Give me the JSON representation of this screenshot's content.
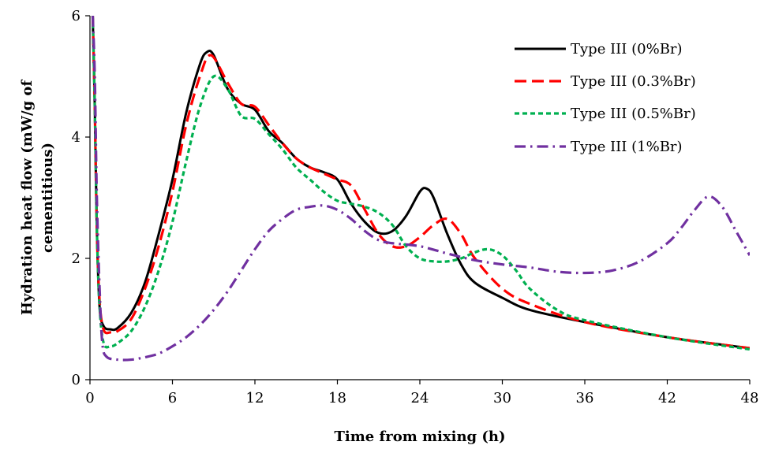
{
  "chart_data": {
    "type": "line",
    "title": "",
    "xlabel": "Time from mixing (h)",
    "ylabel_lines": [
      "Hydration heat flow (mW/g of",
      "cementitious)"
    ],
    "xlim": [
      0,
      48
    ],
    "ylim": [
      0,
      6
    ],
    "xticks": [
      0,
      6,
      12,
      18,
      24,
      30,
      36,
      42,
      48
    ],
    "yticks": [
      0,
      2,
      4,
      6
    ],
    "grid": false,
    "legend_position": "top-right",
    "series": [
      {
        "name": "Type III (0%Br)",
        "color": "#000000",
        "dash": "solid",
        "points": [
          [
            0.2,
            6.0
          ],
          [
            0.35,
            4.5
          ],
          [
            0.5,
            2.5
          ],
          [
            0.7,
            1.2
          ],
          [
            1.0,
            0.88
          ],
          [
            1.5,
            0.83
          ],
          [
            2,
            0.85
          ],
          [
            3,
            1.1
          ],
          [
            4,
            1.6
          ],
          [
            5,
            2.4
          ],
          [
            6,
            3.3
          ],
          [
            7,
            4.4
          ],
          [
            8,
            5.2
          ],
          [
            8.5,
            5.4
          ],
          [
            9,
            5.35
          ],
          [
            10,
            4.8
          ],
          [
            11,
            4.55
          ],
          [
            12,
            4.45
          ],
          [
            13,
            4.1
          ],
          [
            14,
            3.9
          ],
          [
            15,
            3.65
          ],
          [
            16,
            3.5
          ],
          [
            17,
            3.42
          ],
          [
            18,
            3.3
          ],
          [
            19,
            2.9
          ],
          [
            20,
            2.6
          ],
          [
            21,
            2.42
          ],
          [
            22,
            2.45
          ],
          [
            23,
            2.7
          ],
          [
            24,
            3.1
          ],
          [
            24.5,
            3.15
          ],
          [
            25,
            3.0
          ],
          [
            26,
            2.4
          ],
          [
            27,
            1.9
          ],
          [
            28,
            1.6
          ],
          [
            30,
            1.35
          ],
          [
            32,
            1.15
          ],
          [
            36,
            0.95
          ],
          [
            42,
            0.7
          ],
          [
            48,
            0.52
          ]
        ]
      },
      {
        "name": "Type III (0.3%Br)",
        "color": "#ff0000",
        "dash": "long-dash",
        "points": [
          [
            0.2,
            6.0
          ],
          [
            0.35,
            4.5
          ],
          [
            0.5,
            2.5
          ],
          [
            0.7,
            1.3
          ],
          [
            1.0,
            0.82
          ],
          [
            1.5,
            0.78
          ],
          [
            2,
            0.8
          ],
          [
            3,
            1.0
          ],
          [
            4,
            1.5
          ],
          [
            5,
            2.2
          ],
          [
            6,
            3.1
          ],
          [
            7,
            4.2
          ],
          [
            8,
            5.0
          ],
          [
            8.8,
            5.35
          ],
          [
            10,
            4.9
          ],
          [
            11,
            4.55
          ],
          [
            12,
            4.5
          ],
          [
            13,
            4.2
          ],
          [
            14,
            3.9
          ],
          [
            15,
            3.65
          ],
          [
            16,
            3.5
          ],
          [
            17,
            3.4
          ],
          [
            18,
            3.3
          ],
          [
            19,
            3.2
          ],
          [
            20,
            2.8
          ],
          [
            21,
            2.4
          ],
          [
            22,
            2.2
          ],
          [
            23,
            2.2
          ],
          [
            24,
            2.35
          ],
          [
            25,
            2.55
          ],
          [
            26,
            2.65
          ],
          [
            27,
            2.4
          ],
          [
            28,
            2.0
          ],
          [
            30,
            1.5
          ],
          [
            32,
            1.25
          ],
          [
            36,
            0.95
          ],
          [
            42,
            0.7
          ],
          [
            48,
            0.52
          ]
        ]
      },
      {
        "name": "Type III (0.5%Br)",
        "color": "#00b050",
        "dash": "short-dash",
        "points": [
          [
            0.2,
            6.0
          ],
          [
            0.35,
            4.5
          ],
          [
            0.5,
            2.5
          ],
          [
            0.7,
            1.2
          ],
          [
            1.0,
            0.6
          ],
          [
            1.5,
            0.55
          ],
          [
            2,
            0.6
          ],
          [
            3,
            0.8
          ],
          [
            4,
            1.2
          ],
          [
            5,
            1.8
          ],
          [
            6,
            2.6
          ],
          [
            7,
            3.6
          ],
          [
            8,
            4.5
          ],
          [
            9,
            5.0
          ],
          [
            10,
            4.8
          ],
          [
            11,
            4.35
          ],
          [
            12,
            4.3
          ],
          [
            13,
            4.05
          ],
          [
            14,
            3.8
          ],
          [
            15,
            3.5
          ],
          [
            16,
            3.3
          ],
          [
            17,
            3.1
          ],
          [
            18,
            2.95
          ],
          [
            19,
            2.9
          ],
          [
            20,
            2.85
          ],
          [
            21,
            2.75
          ],
          [
            22,
            2.55
          ],
          [
            23,
            2.2
          ],
          [
            24,
            2.0
          ],
          [
            25,
            1.95
          ],
          [
            26,
            1.95
          ],
          [
            27,
            2.0
          ],
          [
            28,
            2.1
          ],
          [
            29,
            2.15
          ],
          [
            30,
            2.05
          ],
          [
            31,
            1.8
          ],
          [
            32,
            1.5
          ],
          [
            34,
            1.15
          ],
          [
            36,
            0.98
          ],
          [
            42,
            0.7
          ],
          [
            48,
            0.5
          ]
        ]
      },
      {
        "name": "Type III (1%Br)",
        "color": "#7030a0",
        "dash": "dash-dot",
        "points": [
          [
            0.2,
            6.0
          ],
          [
            0.35,
            5.0
          ],
          [
            0.5,
            3.0
          ],
          [
            0.7,
            1.5
          ],
          [
            0.9,
            0.6
          ],
          [
            1.2,
            0.38
          ],
          [
            2,
            0.33
          ],
          [
            3,
            0.33
          ],
          [
            4,
            0.37
          ],
          [
            5,
            0.43
          ],
          [
            6,
            0.55
          ],
          [
            7,
            0.7
          ],
          [
            8,
            0.9
          ],
          [
            9,
            1.15
          ],
          [
            10,
            1.45
          ],
          [
            11,
            1.8
          ],
          [
            12,
            2.15
          ],
          [
            13,
            2.45
          ],
          [
            14,
            2.65
          ],
          [
            15,
            2.8
          ],
          [
            16,
            2.85
          ],
          [
            17,
            2.87
          ],
          [
            18,
            2.8
          ],
          [
            19,
            2.65
          ],
          [
            20,
            2.45
          ],
          [
            21,
            2.3
          ],
          [
            22,
            2.25
          ],
          [
            24,
            2.2
          ],
          [
            26,
            2.08
          ],
          [
            28,
            1.97
          ],
          [
            30,
            1.9
          ],
          [
            32,
            1.85
          ],
          [
            34,
            1.78
          ],
          [
            36,
            1.76
          ],
          [
            38,
            1.8
          ],
          [
            40,
            1.95
          ],
          [
            42,
            2.25
          ],
          [
            43,
            2.5
          ],
          [
            44,
            2.8
          ],
          [
            45,
            3.02
          ],
          [
            46,
            2.85
          ],
          [
            47,
            2.45
          ],
          [
            48,
            2.05
          ]
        ]
      }
    ]
  }
}
